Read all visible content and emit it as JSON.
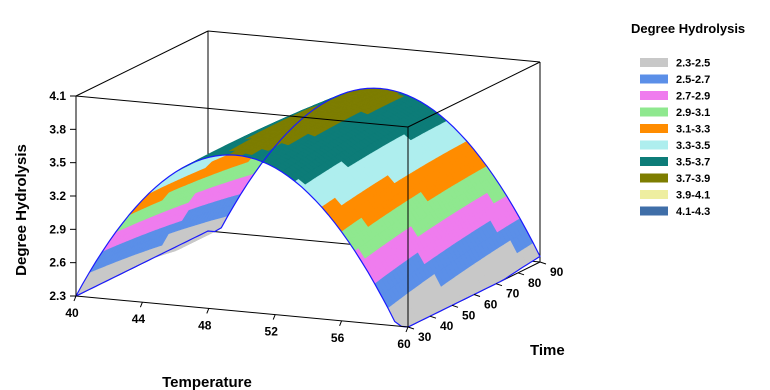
{
  "chart_data": {
    "type": "surface",
    "title": "",
    "xlabel": "Temperature",
    "ylabel": "Time",
    "zlabel": "Degree Hydrolysis",
    "x_ticks": [
      "40",
      "44",
      "48",
      "52",
      "56",
      "60"
    ],
    "y_ticks": [
      "30",
      "40",
      "50",
      "60",
      "70",
      "80",
      "90"
    ],
    "z_ticks": [
      "2.3",
      "2.6",
      "2.9",
      "3.2",
      "3.5",
      "3.8",
      "4.1"
    ],
    "xlim": [
      40,
      60
    ],
    "ylim": [
      30,
      90
    ],
    "zlim": [
      2.3,
      4.1
    ],
    "legend": {
      "title": "Degree Hydrolysis",
      "position": "right",
      "entries": [
        {
          "label": "2.3-2.5",
          "color": "#c8c8c8"
        },
        {
          "label": "2.5-2.7",
          "color": "#5b8fe8"
        },
        {
          "label": "2.7-2.9",
          "color": "#ef7cee"
        },
        {
          "label": "2.9-3.1",
          "color": "#8fe88f"
        },
        {
          "label": "3.1-3.3",
          "color": "#ff8c00"
        },
        {
          "label": "3.3-3.5",
          "color": "#aeeeee"
        },
        {
          "label": "3.5-3.7",
          "color": "#0d7c78"
        },
        {
          "label": "3.7-3.9",
          "color": "#7d7d00"
        },
        {
          "label": "3.9-4.1",
          "color": "#eeeea0"
        },
        {
          "label": "4.1-4.3",
          "color": "#3f6ea8"
        }
      ]
    }
  }
}
